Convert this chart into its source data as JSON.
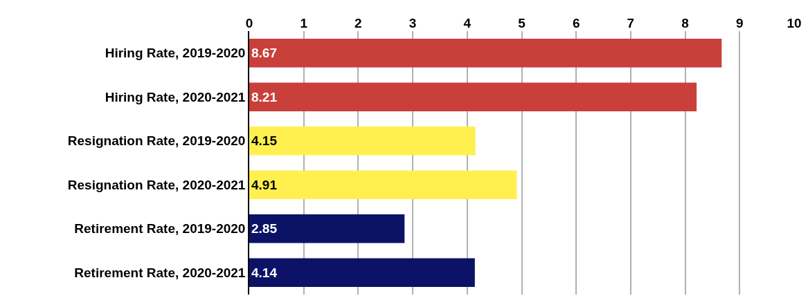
{
  "chart_data": {
    "type": "bar",
    "orientation": "horizontal",
    "categories": [
      "Hiring Rate, 2019-2020",
      "Hiring Rate, 2020-2021",
      "Resignation Rate, 2019-2020",
      "Resignation Rate, 2020-2021",
      "Retirement Rate, 2019-2020",
      "Retirement Rate, 2020-2021"
    ],
    "values": [
      8.67,
      8.21,
      4.15,
      4.91,
      2.85,
      4.14
    ],
    "colors": [
      "#c9403a",
      "#c9403a",
      "#fff050",
      "#fff050",
      "#0c1366",
      "#0c1366"
    ],
    "xlim": [
      0,
      10
    ],
    "xticks": [
      0,
      1,
      2,
      3,
      4,
      5,
      6,
      7,
      8,
      9,
      10
    ],
    "grid": "x",
    "data_labels": true
  }
}
